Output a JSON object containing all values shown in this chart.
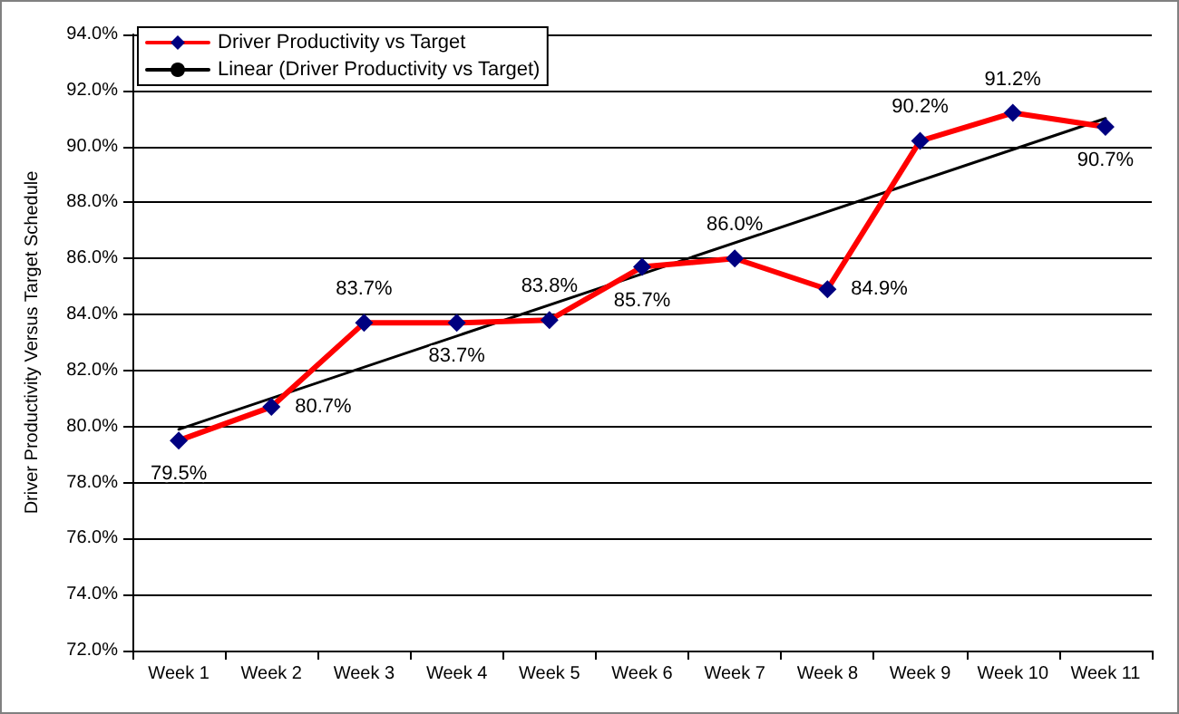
{
  "chart_data": {
    "type": "line",
    "ylabel": "Driver Productivity Versus Target Schedule",
    "categories": [
      "Week 1",
      "Week 2",
      "Week 3",
      "Week 4",
      "Week 5",
      "Week 6",
      "Week 7",
      "Week 8",
      "Week 9",
      "Week 10",
      "Week 11"
    ],
    "series": [
      {
        "name": "Driver Productivity vs Target",
        "color": "#ff0000",
        "values": [
          79.5,
          80.7,
          83.7,
          83.7,
          83.8,
          85.7,
          86.0,
          84.9,
          90.2,
          91.2,
          90.7
        ],
        "value_labels": [
          "79.5%",
          "80.7%",
          "83.7%",
          "83.7%",
          "83.8%",
          "85.7%",
          "86.0%",
          "84.9%",
          "90.2%",
          "91.2%",
          "90.7%"
        ],
        "marker": "diamond"
      },
      {
        "name": "Linear (Driver Productivity vs Target)",
        "color": "#000000",
        "x": [
          "Week 1",
          "Week 11"
        ],
        "values": [
          79.9,
          91.0
        ],
        "marker": "none"
      }
    ],
    "ylim": [
      72,
      94
    ],
    "yticks": [
      {
        "value": 72,
        "label": "72.0%"
      },
      {
        "value": 74,
        "label": "74.0%"
      },
      {
        "value": 76,
        "label": "76.0%"
      },
      {
        "value": 78,
        "label": "78.0%"
      },
      {
        "value": 80,
        "label": "80.0%"
      },
      {
        "value": 82,
        "label": "82.0%"
      },
      {
        "value": 84,
        "label": "84.0%"
      },
      {
        "value": 86,
        "label": "86.0%"
      },
      {
        "value": 88,
        "label": "88.0%"
      },
      {
        "value": 90,
        "label": "90.0%"
      },
      {
        "value": 92,
        "label": "92.0%"
      },
      {
        "value": 94,
        "label": "94.0%"
      }
    ],
    "grid": "y",
    "legend": "top left",
    "line_style": "solid"
  }
}
